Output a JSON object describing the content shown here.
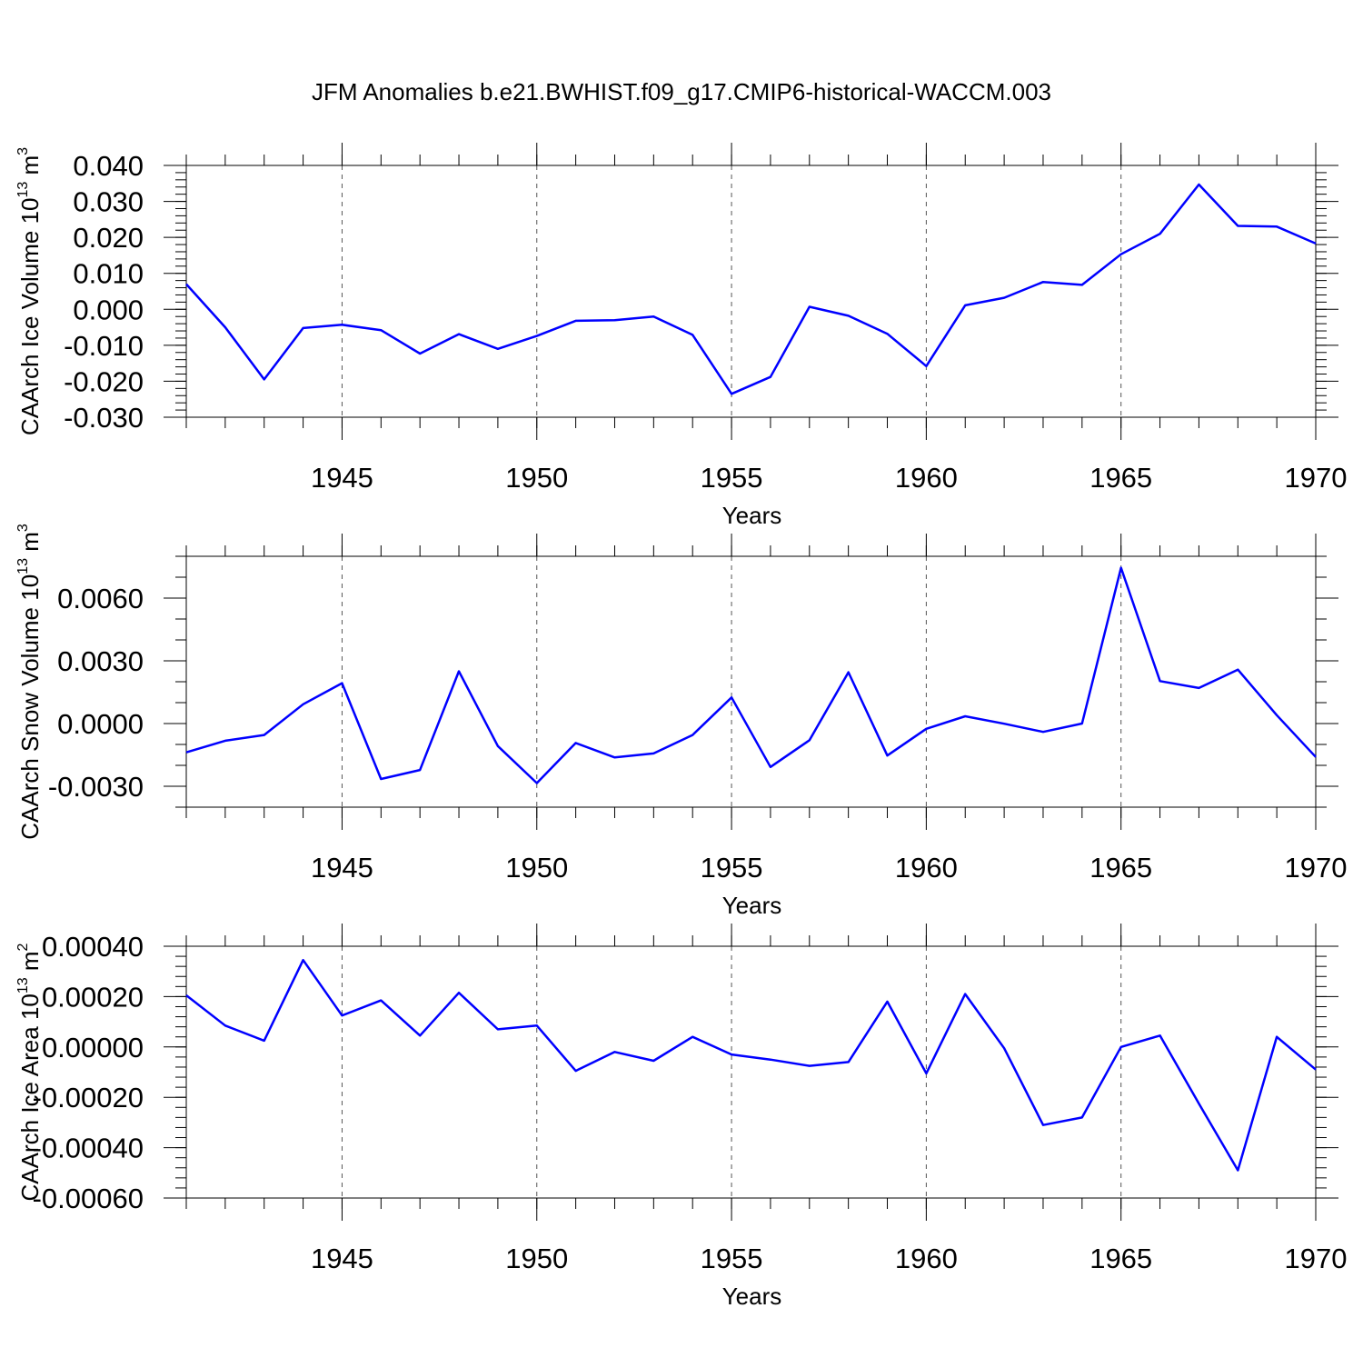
{
  "figure_title": "JFM Anomalies b.e21.BWHIST.f09_g17.CMIP6-historical-WACCM.003",
  "line_color": "#0000ff",
  "chart_data": [
    {
      "type": "line",
      "title": "",
      "ylabel": "CAArch Ice Volume 10",
      "ylabel_sup1": "13",
      "ylabel_unit": " m",
      "ylabel_sup2": "3",
      "xlabel": "Years",
      "xlim": [
        1941,
        1970
      ],
      "ylim": [
        -0.03,
        0.04
      ],
      "y_major_ticks": [
        -0.03,
        -0.02,
        -0.01,
        0.0,
        0.01,
        0.02,
        0.03,
        0.04
      ],
      "y_tick_labels": [
        "-0.030",
        "-0.020",
        "-0.010",
        "0.000",
        "0.010",
        "0.020",
        "0.030",
        "0.040"
      ],
      "y_minor_step": 0.002,
      "x_major_ticks": [
        1945,
        1950,
        1955,
        1960,
        1965,
        1970
      ],
      "x_tick_labels": [
        "1945",
        "1950",
        "1955",
        "1960",
        "1965",
        "1970"
      ],
      "x": [
        1941,
        1942,
        1943,
        1944,
        1945,
        1946,
        1947,
        1948,
        1949,
        1950,
        1951,
        1952,
        1953,
        1954,
        1955,
        1956,
        1957,
        1958,
        1959,
        1960,
        1961,
        1962,
        1963,
        1964,
        1965,
        1966,
        1967,
        1968,
        1969,
        1970
      ],
      "series": [
        {
          "values": [
            0.007,
            -0.005,
            -0.0195,
            -0.0052,
            -0.0043,
            -0.0058,
            -0.0123,
            -0.0069,
            -0.011,
            -0.0074,
            -0.0032,
            -0.003,
            -0.002,
            -0.0071,
            -0.0235,
            -0.0188,
            0.0007,
            -0.0018,
            -0.0068,
            -0.0158,
            0.0011,
            0.0032,
            0.0076,
            0.0068,
            0.0153,
            0.021,
            0.0347,
            0.0232,
            0.023,
            0.0183
          ]
        }
      ]
    },
    {
      "type": "line",
      "title": "",
      "ylabel": "CAArch Snow Volume 10",
      "ylabel_sup1": "13",
      "ylabel_unit": " m",
      "ylabel_sup2": "3",
      "xlabel": "Years",
      "xlim": [
        1941,
        1970
      ],
      "ylim": [
        -0.004,
        0.008
      ],
      "y_major_ticks": [
        -0.003,
        0.0,
        0.003,
        0.006
      ],
      "y_tick_labels": [
        "-0.0030",
        "0.0000",
        "0.0030",
        "0.0060"
      ],
      "y_minor_step": 0.001,
      "x_major_ticks": [
        1945,
        1950,
        1955,
        1960,
        1965,
        1970
      ],
      "x_tick_labels": [
        "1945",
        "1950",
        "1955",
        "1960",
        "1965",
        "1970"
      ],
      "x": [
        1941,
        1942,
        1943,
        1944,
        1945,
        1946,
        1947,
        1948,
        1949,
        1950,
        1951,
        1952,
        1953,
        1954,
        1955,
        1956,
        1957,
        1958,
        1959,
        1960,
        1961,
        1962,
        1963,
        1964,
        1965,
        1966,
        1967,
        1968,
        1969,
        1970
      ],
      "series": [
        {
          "values": [
            -0.00138,
            -0.00082,
            -0.00055,
            0.00092,
            0.00193,
            -0.00265,
            -0.00222,
            0.0025,
            -0.00108,
            -0.00285,
            -0.00093,
            -0.00162,
            -0.00143,
            -0.00055,
            0.00125,
            -0.00208,
            -0.0008,
            0.00245,
            -0.00153,
            -0.00025,
            0.00035,
            -1e-05,
            -0.0004,
            0.0,
            0.00745,
            0.00203,
            0.0017,
            0.00258,
            0.0004,
            -0.0016
          ]
        }
      ]
    },
    {
      "type": "line",
      "title": "",
      "ylabel": "CAArch Ice Area 10",
      "ylabel_sup1": "13",
      "ylabel_unit": " m",
      "ylabel_sup2": "2",
      "xlabel": "Years",
      "xlim": [
        1941,
        1970
      ],
      "ylim": [
        -0.0006,
        0.0004
      ],
      "y_major_ticks": [
        -0.0006,
        -0.0004,
        -0.0002,
        0.0,
        0.0002,
        0.0004
      ],
      "y_tick_labels": [
        "-0.00060",
        "-0.00040",
        "-0.00020",
        "0.00000",
        "0.00020",
        "0.00040"
      ],
      "y_minor_step": 4e-05,
      "x_major_ticks": [
        1945,
        1950,
        1955,
        1960,
        1965,
        1970
      ],
      "x_tick_labels": [
        "1945",
        "1950",
        "1955",
        "1960",
        "1965",
        "1970"
      ],
      "x": [
        1941,
        1942,
        1943,
        1944,
        1945,
        1946,
        1947,
        1948,
        1949,
        1950,
        1951,
        1952,
        1953,
        1954,
        1955,
        1956,
        1957,
        1958,
        1959,
        1960,
        1961,
        1962,
        1963,
        1964,
        1965,
        1966,
        1967,
        1968,
        1969,
        1970
      ],
      "series": [
        {
          "values": [
            0.000205,
            8.5e-05,
            2.5e-05,
            0.000345,
            0.000125,
            0.000185,
            4.5e-05,
            0.000215,
            7e-05,
            8.5e-05,
            -9.5e-05,
            -2e-05,
            -5.5e-05,
            4e-05,
            -3e-05,
            -5e-05,
            -7.5e-05,
            -6e-05,
            0.00018,
            -0.000105,
            0.00021,
            -5e-06,
            -0.00031,
            -0.00028,
            0.0,
            4.5e-05,
            -0.000225,
            -0.00049,
            4e-05,
            -9e-05
          ]
        }
      ]
    }
  ]
}
